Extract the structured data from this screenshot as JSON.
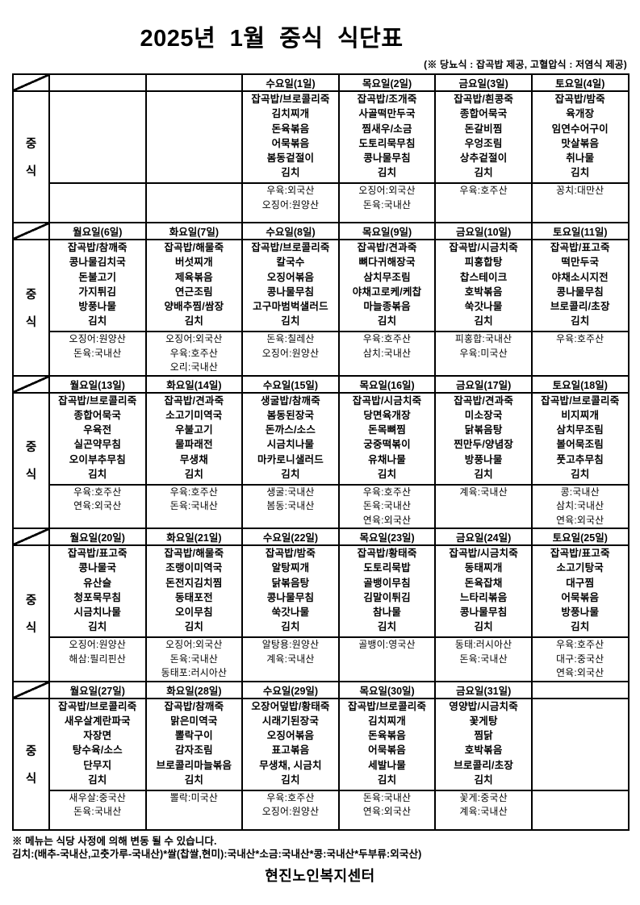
{
  "title": "2025년 1월 중식 식단표",
  "subtitle": "(※ 당뇨식 : 잡곡밥 제공, 고혈압식 : 저염식 제공)",
  "meal_label": [
    "중",
    "식"
  ],
  "weeks": [
    {
      "days": [
        {
          "header": "",
          "menu": [],
          "origin": []
        },
        {
          "header": "",
          "menu": [],
          "origin": []
        },
        {
          "header": "수요일(1일)",
          "menu": [
            "잡곡밥/브로콜리죽",
            "김치찌개",
            "돈육볶음",
            "어묵볶음",
            "봄동겉절이",
            "김치"
          ],
          "origin": [
            "우육:외국산",
            "오징어:원양산"
          ]
        },
        {
          "header": "목요일(2일)",
          "menu": [
            "잡곡밥/조개죽",
            "사골떡만두국",
            "찜새우/소금",
            "도토리묵무침",
            "콩나물무침",
            "김치"
          ],
          "origin": [
            "오징어:외국산",
            "돈육:국내산"
          ]
        },
        {
          "header": "금요일(3일)",
          "menu": [
            "잡곡밥/흰콩죽",
            "종합어묵국",
            "돈갈비찜",
            "우엉조림",
            "상추겉절이",
            "김치"
          ],
          "origin": [
            "우육:호주산"
          ]
        },
        {
          "header": "토요일(4일)",
          "menu": [
            "잡곡밥/밤죽",
            "육개장",
            "임연수어구이",
            "맛살볶음",
            "취나물",
            "김치"
          ],
          "origin": [
            "꽁치:대만산"
          ]
        }
      ]
    },
    {
      "days": [
        {
          "header": "월요일(6일)",
          "menu": [
            "잡곡밥/참깨죽",
            "콩나물김치국",
            "돈불고기",
            "가지튀김",
            "방풍나물",
            "김치"
          ],
          "origin": [
            "오징어:원양산",
            "돈육:국내산"
          ]
        },
        {
          "header": "화요일(7일)",
          "menu": [
            "잡곡밥/해물죽",
            "버섯찌개",
            "제육볶음",
            "연근조림",
            "양배추찜/쌈장",
            "김치"
          ],
          "origin": [
            "오징어:외국산",
            "우육:호주산",
            "오리:국내산"
          ]
        },
        {
          "header": "수요일(8일)",
          "menu": [
            "잡곡밥/브로콜리죽",
            "칼국수",
            "오징어볶음",
            "콩나물무침",
            "고구마범벅샐러드",
            "김치"
          ],
          "origin": [
            "돈육:칠레산",
            "오징어:원양산"
          ]
        },
        {
          "header": "목요일(9일)",
          "menu": [
            "잡곡밥/견과죽",
            "뼈다귀해장국",
            "삼치무조림",
            "야채고로케/케찹",
            "마늘종볶음",
            "김치"
          ],
          "origin": [
            "우육:호주산",
            "삼치:국내산"
          ]
        },
        {
          "header": "금요일(10일)",
          "menu": [
            "잡곡밥/시금치죽",
            "피홍합탕",
            "찹스테이크",
            "호박볶음",
            "쑥갓나물",
            "김치"
          ],
          "origin": [
            "피홍합:국내산",
            "우육:미국산"
          ]
        },
        {
          "header": "토요일(11일)",
          "menu": [
            "잡곡밥/표고죽",
            "떡만두국",
            "야채소시지전",
            "콩나물무침",
            "브로콜리/초장",
            "김치"
          ],
          "origin": [
            "우육:호주산"
          ]
        }
      ]
    },
    {
      "days": [
        {
          "header": "월요일(13일)",
          "menu": [
            "잡곡밥/브로콜리죽",
            "종합어묵국",
            "우육전",
            "실곤약무침",
            "오이부추무침",
            "김치"
          ],
          "origin": [
            "우육:호주산",
            "연육:외국산"
          ]
        },
        {
          "header": "화요일(14일)",
          "menu": [
            "잡곡밥/견과죽",
            "소고기미역국",
            "우불고기",
            "물파래전",
            "무생채",
            "김치"
          ],
          "origin": [
            "우육:호주산",
            "돈육:국내산"
          ]
        },
        {
          "header": "수요일(15일)",
          "menu": [
            "생굴밥/참깨죽",
            "봄동된장국",
            "돈까스/소스",
            "시금치나물",
            "마카로니샐러드",
            "김치"
          ],
          "origin": [
            "생굴:국내산",
            "봄동:국내산"
          ]
        },
        {
          "header": "목요일(16일)",
          "menu": [
            "잡곡밥/시금치죽",
            "당면육개장",
            "돈목뼈찜",
            "궁중떡볶이",
            "유채나물",
            "김치"
          ],
          "origin": [
            "우육:호주산",
            "돈육:국내산",
            "연육:외국산"
          ]
        },
        {
          "header": "금요일(17일)",
          "menu": [
            "잡곡밥/견과죽",
            "미소장국",
            "닭볶음탕",
            "찐만두/양념장",
            "방풍나물",
            "김치"
          ],
          "origin": [
            "계육:국내산"
          ]
        },
        {
          "header": "토요일(18일)",
          "menu": [
            "잡곡밥/브로콜리죽",
            "비지찌개",
            "삼치무조림",
            "볼어묵조림",
            "풋고추무침",
            "김치"
          ],
          "origin": [
            "콩:국내산",
            "삼치:국내산",
            "연육:외국산"
          ]
        }
      ]
    },
    {
      "days": [
        {
          "header": "월요일(20일)",
          "menu": [
            "잡곡밥/표고죽",
            "콩나물국",
            "유산슬",
            "청포묵무침",
            "시금치나물",
            "김치"
          ],
          "origin": [
            "오징어:원양산",
            "해삼:필리핀산"
          ]
        },
        {
          "header": "화요일(21일)",
          "menu": [
            "잡곡밥/해물죽",
            "조랭이미역국",
            "돈전지김치찜",
            "동태포전",
            "오이무침",
            "김치"
          ],
          "origin": [
            "오징어:외국산",
            "돈육:국내산",
            "동태포:러시아산"
          ]
        },
        {
          "header": "수요일(22일)",
          "menu": [
            "잡곡밥/밤죽",
            "알탕찌개",
            "닭볶음탕",
            "콩나물무침",
            "쑥갓나물",
            "김치"
          ],
          "origin": [
            "알탕용:원양산",
            "계육:국내산"
          ]
        },
        {
          "header": "목요일(23일)",
          "menu": [
            "잡곡밥/황태죽",
            "도토리묵밥",
            "골뱅이무침",
            "김말이튀김",
            "참나물",
            "김치"
          ],
          "origin": [
            "골뱅이:영국산"
          ]
        },
        {
          "header": "금요일(24일)",
          "menu": [
            "잡곡밥/시금치죽",
            "동태찌개",
            "돈육잡채",
            "느타리볶음",
            "콩나물무침",
            "김치"
          ],
          "origin": [
            "동태:러시아산",
            "돈육:국내산"
          ]
        },
        {
          "header": "토요일(25일)",
          "menu": [
            "잡곡밥/표고죽",
            "소고기탕국",
            "대구찜",
            "어묵볶음",
            "방풍나물",
            "김치"
          ],
          "origin": [
            "우육:호주산",
            "대구:중국산",
            "연육:외국산"
          ]
        }
      ]
    },
    {
      "days": [
        {
          "header": "월요일(27일)",
          "menu": [
            "잡곡밥/브로콜리죽",
            "새우살계란파국",
            "자장면",
            "탕수육/소스",
            "단무지",
            "김치"
          ],
          "origin": [
            "새우살:중국산",
            "돈육:국내산"
          ]
        },
        {
          "header": "화요일(28일)",
          "menu": [
            "잡곡밥/참깨죽",
            "맑은미역국",
            "뽈락구이",
            "감자조림",
            "브로콜리마늘볶음",
            "김치"
          ],
          "origin": [
            "뽈락:미국산"
          ]
        },
        {
          "header": "수요일(29일)",
          "menu": [
            "오장어덮밥/황태죽",
            "시래기된장국",
            "오징어볶음",
            "표고볶음",
            "무생채, 시금치",
            "김치"
          ],
          "origin": [
            "우육:호주산",
            "오징어:원양산"
          ]
        },
        {
          "header": "목요일(30일)",
          "menu": [
            "잡곡밥/브로콜리죽",
            "김치찌개",
            "돈육볶음",
            "어묵볶음",
            "세발나물",
            "김치"
          ],
          "origin": [
            "돈육:국내산",
            "연육:외국산"
          ]
        },
        {
          "header": "금요일(31일)",
          "menu": [
            "영양밥/시금치죽",
            "꽃게탕",
            "찜닭",
            "호박볶음",
            "브로콜리/초장",
            "김치"
          ],
          "origin": [
            "꽃게:중국산",
            "계육:국내산"
          ]
        },
        {
          "header": "",
          "menu": [],
          "origin": []
        }
      ]
    }
  ],
  "footnotes": {
    "notice": "※ 메뉴는 식당 사정에 의해 변동 될 수 있습니다.",
    "ingredient_origin": "김치:(배추-국내산,고춧가루-국내산)*쌀(찹쌀,현미):국내산*소금:국내산*콩:국내산*두부류:외국산)"
  },
  "facility": "현진노인복지센터"
}
